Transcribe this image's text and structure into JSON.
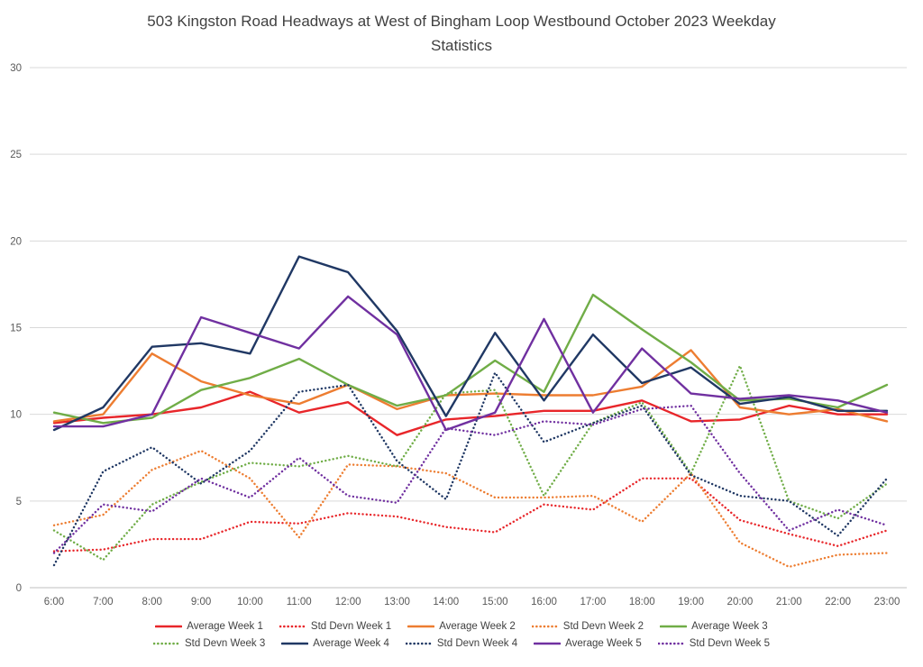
{
  "header": {
    "title_line1": "503 Kingston Road Headways at West of Bingham Loop Westbound October 2023 Weekday",
    "title_line2": "Statistics"
  },
  "chart_data": {
    "type": "line",
    "title": "503 Kingston Road Headways at West of Bingham Loop Westbound October 2023 Weekday Statistics",
    "xlabel": "",
    "ylabel": "",
    "ylim": [
      0,
      30
    ],
    "yticks": [
      0,
      5,
      10,
      15,
      20,
      25,
      30
    ],
    "grid": true,
    "legend_position": "bottom",
    "x": [
      "6:00",
      "7:00",
      "8:00",
      "9:00",
      "10:00",
      "11:00",
      "12:00",
      "13:00",
      "14:00",
      "15:00",
      "16:00",
      "17:00",
      "18:00",
      "19:00",
      "20:00",
      "21:00",
      "22:00",
      "23:00"
    ],
    "series": [
      {
        "name": "Average Week 1",
        "color": "#e8262a",
        "style": "solid",
        "values": [
          9.5,
          9.8,
          10.0,
          10.4,
          11.3,
          10.1,
          10.7,
          8.8,
          9.7,
          9.9,
          10.2,
          10.2,
          10.8,
          9.6,
          9.7,
          10.5,
          10.0,
          10.0
        ]
      },
      {
        "name": "Std Devn Week 1",
        "color": "#e8262a",
        "style": "dotted",
        "values": [
          2.1,
          2.2,
          2.8,
          2.8,
          3.8,
          3.7,
          4.3,
          4.1,
          3.5,
          3.2,
          4.8,
          4.5,
          6.3,
          6.3,
          3.9,
          3.1,
          2.4,
          3.3
        ]
      },
      {
        "name": "Average Week 2",
        "color": "#ed7d31",
        "style": "solid",
        "values": [
          9.6,
          10.0,
          13.5,
          11.9,
          11.1,
          10.6,
          11.7,
          10.3,
          11.1,
          11.2,
          11.1,
          11.1,
          11.6,
          13.7,
          10.4,
          10.0,
          10.3,
          9.6
        ]
      },
      {
        "name": "Std Devn Week 2",
        "color": "#ed7d31",
        "style": "dotted",
        "values": [
          3.6,
          4.2,
          6.8,
          7.9,
          6.3,
          2.9,
          7.1,
          7.0,
          6.6,
          5.2,
          5.2,
          5.3,
          3.8,
          6.6,
          2.6,
          1.2,
          1.9,
          2.0
        ]
      },
      {
        "name": "Average Week 3",
        "color": "#70ad47",
        "style": "solid",
        "values": [
          10.1,
          9.5,
          9.8,
          11.4,
          12.1,
          13.2,
          11.7,
          10.5,
          11.1,
          13.1,
          11.3,
          16.9,
          14.9,
          13.0,
          10.8,
          10.9,
          10.4,
          11.7
        ]
      },
      {
        "name": "Std Devn Week 3",
        "color": "#70ad47",
        "style": "dotted",
        "values": [
          3.3,
          1.6,
          4.8,
          6.1,
          7.2,
          7.0,
          7.6,
          7.0,
          11.2,
          11.4,
          5.3,
          9.5,
          10.7,
          6.6,
          12.8,
          5.0,
          4.0,
          6.0
        ]
      },
      {
        "name": "Average Week 4",
        "color": "#203864",
        "style": "solid",
        "values": [
          9.1,
          10.4,
          13.9,
          14.1,
          13.5,
          19.1,
          18.2,
          14.8,
          9.9,
          14.7,
          10.8,
          14.6,
          11.8,
          12.7,
          10.6,
          11.0,
          10.2,
          10.2
        ]
      },
      {
        "name": "Std Devn Week 4",
        "color": "#203864",
        "style": "dotted",
        "values": [
          1.3,
          6.7,
          8.1,
          6.0,
          7.9,
          11.3,
          11.7,
          7.3,
          5.1,
          12.4,
          8.4,
          9.5,
          10.5,
          6.5,
          5.3,
          5.0,
          3.0,
          6.3
        ]
      },
      {
        "name": "Average Week 5",
        "color": "#7030a0",
        "style": "solid",
        "values": [
          9.3,
          9.3,
          10.0,
          15.6,
          14.7,
          13.8,
          16.8,
          14.6,
          9.1,
          10.1,
          15.5,
          10.1,
          13.8,
          11.2,
          10.9,
          11.1,
          10.8,
          10.1
        ]
      },
      {
        "name": "Std Devn Week 5",
        "color": "#7030a0",
        "style": "dotted",
        "values": [
          2.0,
          4.8,
          4.4,
          6.3,
          5.2,
          7.5,
          5.3,
          4.9,
          9.2,
          8.8,
          9.6,
          9.4,
          10.3,
          10.5,
          6.6,
          3.3,
          4.5,
          3.6
        ]
      }
    ],
    "legend_rows": [
      [
        0,
        1,
        2,
        3,
        4
      ],
      [
        5,
        6,
        7,
        8,
        9
      ]
    ]
  },
  "colors": {
    "grid": "#d9d9d9",
    "axis": "#bfbfbf",
    "tick_text": "#595959",
    "title_text": "#404040"
  }
}
